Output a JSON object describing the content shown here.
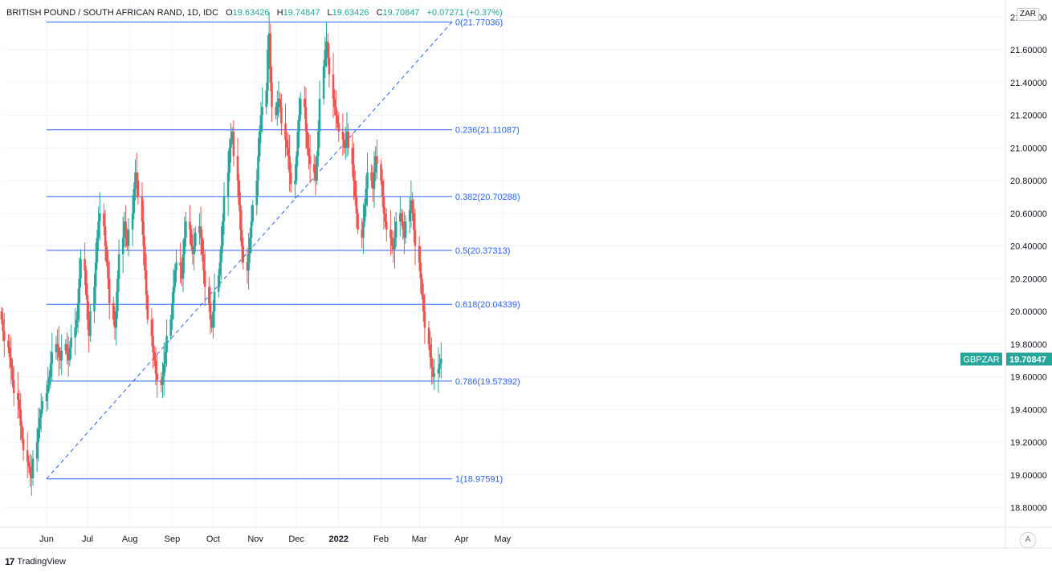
{
  "header": {
    "symbol": "BRITISH POUND / SOUTH AFRICAN RAND, 1D, IDC",
    "o_label": "O",
    "o_value": "19.63426",
    "h_label": "H",
    "h_value": "19.74847",
    "l_label": "L",
    "l_value": "19.63426",
    "c_label": "C",
    "c_value": "19.70847",
    "change": "+0.07271 (+0.37%)"
  },
  "currency_badge": "ZAR",
  "auto_button": "A",
  "footer": {
    "brand": "TradingView",
    "logo": "17"
  },
  "colors": {
    "up": "#26a69a",
    "down": "#ef5350",
    "fib": "#2962ff",
    "price_tag": "#26a69a"
  },
  "chart_data": {
    "type": "candlestick",
    "title": "BRITISH POUND / SOUTH AFRICAN RAND, 1D, IDC",
    "ylim": [
      18.68,
      21.88
    ],
    "y_ticks": [
      "22.00000",
      "21.80000",
      "21.60000",
      "21.40000",
      "21.20000",
      "21.00000",
      "20.80000",
      "20.60000",
      "20.40000",
      "20.20000",
      "20.00000",
      "19.80000",
      "19.60000",
      "19.40000",
      "19.20000",
      "19.00000",
      "18.80000"
    ],
    "x_ticks": [
      {
        "label": "Jun",
        "day": 0
      },
      {
        "label": "Jul",
        "day": 30
      },
      {
        "label": "Aug",
        "day": 61
      },
      {
        "label": "Sep",
        "day": 92
      },
      {
        "label": "Oct",
        "day": 122
      },
      {
        "label": "Nov",
        "day": 153
      },
      {
        "label": "Dec",
        "day": 183
      },
      {
        "label": "2022",
        "day": 214
      },
      {
        "label": "Feb",
        "day": 245
      },
      {
        "label": "Mar",
        "day": 273
      },
      {
        "label": "Apr",
        "day": 304
      },
      {
        "label": "May",
        "day": 334
      }
    ],
    "last_price": {
      "symbol": "GBPZAR",
      "value": "19.70847"
    },
    "fibonacci": {
      "levels": [
        {
          "label": "0(21.77036)",
          "value": 21.77036
        },
        {
          "label": "0.236(21.11087)",
          "value": 21.11087
        },
        {
          "label": "0.382(20.70288)",
          "value": 20.70288
        },
        {
          "label": "0.5(20.37313)",
          "value": 20.37313
        },
        {
          "label": "0.618(20.04339)",
          "value": 20.04339
        },
        {
          "label": "0.786(19.57392)",
          "value": 19.57392
        },
        {
          "label": "1(18.97591)",
          "value": 18.97591
        }
      ],
      "trend_line": {
        "from": {
          "day": 0,
          "value": 18.97591
        },
        "to": {
          "day": 297,
          "value": 21.77036
        }
      },
      "start_day": 0,
      "end_day": 297
    },
    "series_close": [
      19.95,
      19.88,
      19.82,
      19.78,
      19.72,
      19.66,
      19.58,
      19.5,
      19.46,
      19.4,
      19.3,
      19.22,
      19.15,
      19.08,
      19.05,
      19.0,
      18.98,
      19.1,
      19.2,
      19.28,
      19.35,
      19.4,
      19.45,
      19.5,
      19.55,
      19.6,
      19.68,
      19.75,
      19.8,
      19.78,
      19.72,
      19.7,
      19.76,
      19.8,
      19.74,
      19.7,
      19.78,
      19.84,
      19.9,
      19.95,
      20.05,
      20.2,
      20.32,
      20.25,
      20.1,
      19.95,
      19.85,
      20.0,
      20.15,
      20.3,
      20.45,
      20.55,
      20.6,
      20.52,
      20.4,
      20.3,
      20.2,
      20.05,
      19.95,
      19.9,
      20.0,
      20.2,
      20.35,
      20.45,
      20.55,
      20.48,
      20.4,
      20.5,
      20.6,
      20.75,
      20.85,
      20.8,
      20.7,
      20.55,
      20.4,
      20.25,
      20.1,
      19.95,
      19.85,
      19.75,
      19.7,
      19.62,
      19.58,
      19.55,
      19.6,
      19.68,
      19.75,
      19.85,
      19.95,
      20.05,
      20.15,
      20.25,
      20.3,
      20.28,
      20.2,
      20.35,
      20.45,
      20.55,
      20.5,
      20.4,
      20.35,
      20.4,
      20.48,
      20.52,
      20.45,
      20.35,
      20.25,
      20.15,
      20.05,
      19.95,
      19.9,
      20.0,
      20.12,
      20.22,
      20.3,
      20.4,
      20.55,
      20.7,
      20.85,
      21.0,
      21.05,
      21.1,
      20.95,
      20.8,
      20.65,
      20.5,
      20.4,
      20.3,
      20.25,
      20.35,
      20.45,
      20.55,
      20.65,
      20.8,
      20.95,
      21.1,
      21.2,
      21.25,
      21.35,
      21.6,
      21.7,
      21.4,
      21.25,
      21.2,
      21.28,
      21.3,
      21.25,
      21.15,
      21.05,
      21.0,
      20.95,
      20.85,
      20.78,
      20.8,
      20.95,
      21.1,
      21.2,
      21.3,
      21.25,
      21.1,
      21.0,
      20.95,
      20.9,
      20.85,
      20.8,
      20.95,
      21.1,
      21.3,
      21.5,
      21.6,
      21.65,
      21.55,
      21.45,
      21.3,
      21.25,
      21.2,
      21.15,
      21.1,
      21.05,
      21.0,
      21.05,
      21.1,
      21.0,
      20.9,
      20.8,
      20.7,
      20.6,
      20.5,
      20.45,
      20.55,
      20.65,
      20.75,
      20.85,
      20.8,
      20.75,
      20.85,
      20.95,
      20.9,
      20.8,
      20.7,
      20.6,
      20.55,
      20.5,
      20.45,
      20.4,
      20.38,
      20.45,
      20.55,
      20.6,
      20.55,
      20.5,
      20.45,
      20.55,
      20.62,
      20.68,
      20.6,
      20.5,
      20.4,
      20.3,
      20.2,
      20.1,
      20.0,
      19.9,
      19.8,
      19.72,
      19.66,
      19.6,
      19.62,
      19.65,
      19.68,
      19.71
    ]
  }
}
